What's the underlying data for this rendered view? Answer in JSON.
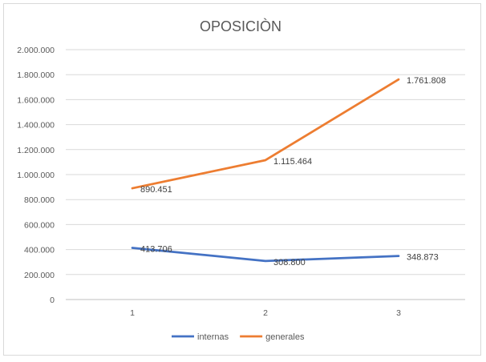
{
  "chart_data": {
    "type": "line",
    "title": "OPOSICIÒN",
    "xlabel": "",
    "ylabel": "",
    "categories": [
      "1",
      "2",
      "3"
    ],
    "ylim": [
      0,
      2000000
    ],
    "yticks": [
      0,
      200000,
      400000,
      600000,
      800000,
      1000000,
      1200000,
      1400000,
      1600000,
      1800000,
      2000000
    ],
    "ytick_labels": [
      "0",
      "200.000",
      "400.000",
      "600.000",
      "800.000",
      "1.000.000",
      "1.200.000",
      "1.400.000",
      "1.600.000",
      "1.800.000",
      "2.000.000"
    ],
    "grid": true,
    "legend_position": "bottom",
    "series": [
      {
        "name": "internas",
        "color": "#4472C4",
        "values": [
          413706,
          308800,
          348873
        ],
        "labels": [
          "413.706",
          "308.800",
          "348.873"
        ]
      },
      {
        "name": "generales",
        "color": "#ED7D31",
        "values": [
          890451,
          1115464,
          1761808
        ],
        "labels": [
          "890.451",
          "1.115.464",
          "1.761.808"
        ]
      }
    ]
  }
}
